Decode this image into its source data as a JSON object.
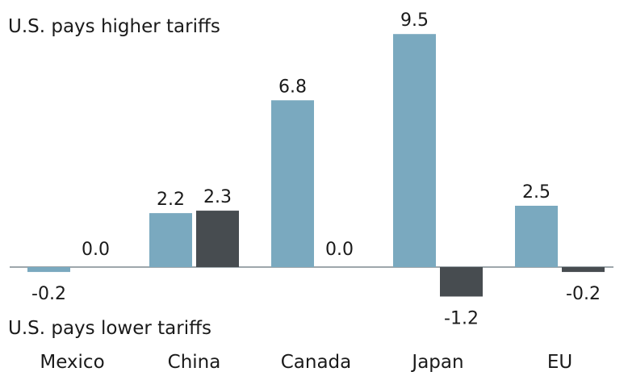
{
  "chart_data": {
    "type": "bar",
    "annotations": {
      "top": "U.S. pays higher tariffs",
      "bottom": "U.S. pays lower tariffs"
    },
    "categories": [
      "Mexico",
      "China",
      "Canada",
      "Japan",
      "EU"
    ],
    "series": [
      {
        "color": "#7aa9bf",
        "values": [
          -0.2,
          2.2,
          6.8,
          9.5,
          2.5
        ]
      },
      {
        "color": "#474c50",
        "values": [
          0.0,
          2.3,
          0.0,
          -1.2,
          -0.2
        ]
      }
    ],
    "data_labels": [
      [
        "-0.2",
        "2.2",
        "6.8",
        "9.5",
        "2.5"
      ],
      [
        "0.0",
        "2.3",
        "0.0",
        "-1.2",
        "-0.2"
      ]
    ],
    "ylim": [
      -1.2,
      9.5
    ],
    "grid": false,
    "legend": "none",
    "baseline_color": "#7f8a90"
  }
}
